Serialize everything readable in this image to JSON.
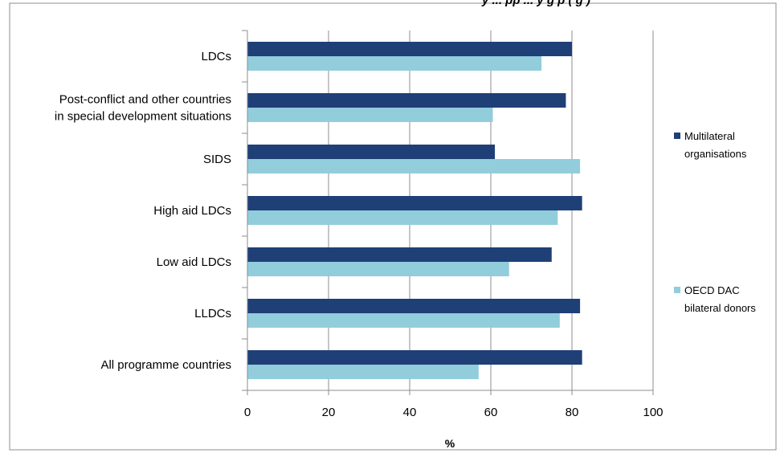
{
  "title_fragment": "y ... pp ... y g p ( g )",
  "chart_data": {
    "type": "bar",
    "orientation": "horizontal",
    "categories": [
      "LDCs",
      "Post-conflict and other countries in special development situations",
      "SIDS",
      "High aid LDCs",
      "Low aid LDCs",
      "LLDCs",
      "All programme countries"
    ],
    "category_label_lines": [
      [
        "LDCs"
      ],
      [
        "Post-conflict and other countries",
        "in special development situations"
      ],
      [
        "SIDS"
      ],
      [
        "High aid LDCs"
      ],
      [
        "Low aid LDCs"
      ],
      [
        "LLDCs"
      ],
      [
        "All programme countries"
      ]
    ],
    "series": [
      {
        "name": "Multilateral organisations",
        "name_lines": [
          "Multilateral",
          "organisations"
        ],
        "color": "#1F3F77",
        "values": [
          80,
          78.5,
          61,
          82.5,
          75,
          82,
          82.5
        ]
      },
      {
        "name": "OECD DAC bilateral donors",
        "name_lines": [
          "OECD DAC",
          "bilateral donors"
        ],
        "color": "#92CDDC",
        "values": [
          72.5,
          60.5,
          82,
          76.5,
          64.5,
          77,
          57
        ]
      }
    ],
    "xlabel": "%",
    "xlim": [
      0,
      100
    ],
    "xticks": [
      0,
      20,
      40,
      60,
      80,
      100
    ],
    "grid": true,
    "legend_position": "right"
  }
}
